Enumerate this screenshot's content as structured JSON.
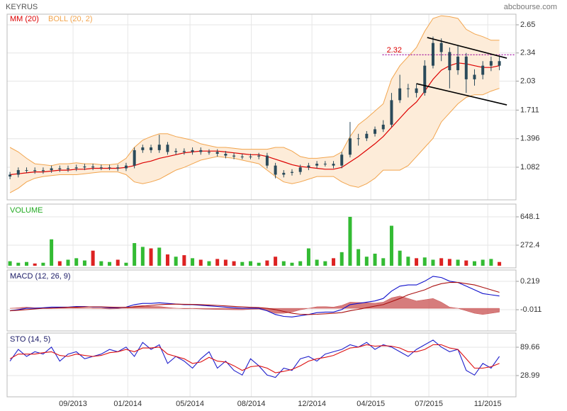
{
  "header": {
    "title": "KEYRUS",
    "source": "abcbourse.com"
  },
  "x_axis": {
    "x": [
      0,
      1,
      2,
      3,
      4,
      5,
      6,
      7,
      8,
      9,
      10,
      11,
      12,
      13,
      14,
      15,
      16,
      17,
      18,
      19,
      20,
      21,
      22,
      23,
      24,
      25,
      26,
      27,
      28,
      29,
      30,
      31,
      32,
      33,
      34,
      35,
      36,
      37,
      38,
      39,
      40,
      41,
      42,
      43,
      44,
      45,
      46,
      47,
      48,
      49,
      50,
      51,
      52,
      53,
      54,
      55,
      56,
      57,
      58,
      59
    ],
    "xlim": [
      -0.35,
      61.0
    ],
    "xticks": [
      {
        "value": 7.6,
        "label": "09/2013"
      },
      {
        "value": 14.2,
        "label": "01/2014"
      },
      {
        "value": 21.7,
        "label": "05/2014"
      },
      {
        "value": 29.1,
        "label": "08/2014"
      },
      {
        "value": 36.4,
        "label": "12/2014"
      },
      {
        "value": 43.5,
        "label": "04/2015"
      },
      {
        "value": 50.5,
        "label": "07/2015"
      },
      {
        "value": 57.6,
        "label": "11/2015"
      }
    ]
  },
  "chart_data": [
    {
      "type": "candlestick",
      "color": "#2a4a5a",
      "open": [
        0.98,
        1.0,
        1.05,
        1.05,
        1.04,
        1.05,
        1.07,
        1.06,
        1.07,
        1.08,
        1.09,
        1.08,
        1.08,
        1.08,
        1.07,
        1.1,
        1.27,
        1.3,
        1.27,
        1.33,
        1.25,
        1.26,
        1.25,
        1.27,
        1.25,
        1.25,
        1.23,
        1.21,
        1.2,
        1.2,
        1.2,
        1.21,
        1.1,
        1.0,
        1.02,
        1.03,
        1.08,
        1.1,
        1.12,
        1.12,
        1.1,
        1.22,
        1.4,
        1.4,
        1.45,
        1.5,
        1.55,
        1.82,
        1.95,
        1.95,
        1.9,
        2.2,
        2.45,
        2.35,
        2.15,
        2.3,
        2.05,
        2.1,
        2.2,
        2.25
      ],
      "high": [
        1.03,
        1.08,
        1.08,
        1.08,
        1.08,
        1.1,
        1.1,
        1.1,
        1.11,
        1.12,
        1.12,
        1.11,
        1.11,
        1.11,
        1.13,
        1.3,
        1.33,
        1.33,
        1.44,
        1.36,
        1.29,
        1.29,
        1.3,
        1.3,
        1.28,
        1.28,
        1.26,
        1.24,
        1.23,
        1.23,
        1.24,
        1.24,
        1.13,
        1.05,
        1.06,
        1.11,
        1.13,
        1.15,
        1.15,
        1.15,
        1.25,
        1.58,
        1.45,
        1.48,
        1.53,
        1.6,
        1.9,
        2.1,
        2.0,
        2.0,
        2.26,
        2.52,
        2.5,
        2.4,
        2.42,
        2.34,
        2.16,
        2.25,
        2.3,
        2.3
      ],
      "low": [
        0.95,
        0.97,
        1.02,
        1.01,
        1.01,
        1.02,
        1.03,
        1.03,
        1.04,
        1.05,
        1.05,
        1.05,
        1.05,
        1.04,
        1.04,
        1.07,
        1.24,
        1.24,
        1.24,
        1.22,
        1.22,
        1.22,
        1.22,
        1.22,
        1.22,
        1.2,
        1.18,
        1.17,
        1.17,
        1.17,
        1.17,
        1.07,
        0.96,
        0.97,
        0.99,
        1.0,
        1.05,
        1.07,
        1.09,
        1.07,
        1.07,
        1.19,
        1.32,
        1.37,
        1.42,
        1.47,
        1.52,
        1.79,
        1.85,
        1.85,
        1.87,
        2.17,
        2.25,
        1.95,
        2.1,
        1.9,
        1.98,
        2.05,
        2.14,
        2.15
      ],
      "close": [
        1.0,
        1.05,
        1.05,
        1.04,
        1.05,
        1.07,
        1.06,
        1.07,
        1.08,
        1.09,
        1.08,
        1.08,
        1.08,
        1.07,
        1.1,
        1.27,
        1.3,
        1.27,
        1.33,
        1.25,
        1.26,
        1.25,
        1.27,
        1.25,
        1.25,
        1.23,
        1.21,
        1.2,
        1.2,
        1.2,
        1.21,
        1.1,
        1.0,
        1.02,
        1.03,
        1.08,
        1.1,
        1.12,
        1.12,
        1.1,
        1.22,
        1.4,
        1.4,
        1.45,
        1.5,
        1.55,
        1.82,
        1.95,
        1.95,
        1.9,
        2.2,
        2.45,
        2.35,
        2.15,
        2.3,
        2.05,
        2.1,
        2.2,
        2.25,
        2.2
      ],
      "series": [
        {
          "name": "MM (20)",
          "color": "#dd0000",
          "values": [
            1.0,
            1.01,
            1.02,
            1.03,
            1.03,
            1.04,
            1.05,
            1.05,
            1.06,
            1.06,
            1.07,
            1.07,
            1.07,
            1.07,
            1.08,
            1.1,
            1.13,
            1.15,
            1.18,
            1.2,
            1.22,
            1.24,
            1.25,
            1.26,
            1.26,
            1.26,
            1.25,
            1.24,
            1.23,
            1.22,
            1.22,
            1.2,
            1.17,
            1.14,
            1.11,
            1.09,
            1.08,
            1.07,
            1.06,
            1.06,
            1.08,
            1.14,
            1.2,
            1.27,
            1.34,
            1.42,
            1.52,
            1.62,
            1.72,
            1.8,
            1.92,
            2.05,
            2.15,
            2.2,
            2.23,
            2.22,
            2.2,
            2.18,
            2.18,
            2.2
          ]
        },
        {
          "name": "BOLL (20, 2)",
          "color": "#f2a54e",
          "fill": "#fdecd9",
          "upper": [
            1.3,
            1.25,
            1.18,
            1.12,
            1.11,
            1.1,
            1.12,
            1.12,
            1.13,
            1.12,
            1.12,
            1.11,
            1.11,
            1.12,
            1.18,
            1.3,
            1.38,
            1.42,
            1.45,
            1.45,
            1.42,
            1.4,
            1.38,
            1.34,
            1.32,
            1.3,
            1.3,
            1.29,
            1.28,
            1.28,
            1.28,
            1.28,
            1.3,
            1.3,
            1.26,
            1.2,
            1.18,
            1.18,
            1.19,
            1.2,
            1.25,
            1.42,
            1.55,
            1.62,
            1.7,
            1.78,
            2.05,
            2.2,
            2.3,
            2.4,
            2.58,
            2.72,
            2.75,
            2.74,
            2.72,
            2.6,
            2.55,
            2.52,
            2.48,
            2.48
          ],
          "lower": [
            0.8,
            0.85,
            0.92,
            0.96,
            0.98,
            0.99,
            1.0,
            1.0,
            1.0,
            1.01,
            1.02,
            1.03,
            1.03,
            1.03,
            1.0,
            0.92,
            0.9,
            0.92,
            0.95,
            1.0,
            1.05,
            1.08,
            1.12,
            1.16,
            1.18,
            1.2,
            1.19,
            1.18,
            1.16,
            1.14,
            1.12,
            1.05,
            0.98,
            0.92,
            0.9,
            0.92,
            0.95,
            0.98,
            0.98,
            0.98,
            0.92,
            0.88,
            0.86,
            0.9,
            0.96,
            1.05,
            1.05,
            1.05,
            1.1,
            1.2,
            1.3,
            1.4,
            1.58,
            1.68,
            1.78,
            1.85,
            1.88,
            1.88,
            1.92,
            1.95
          ]
        }
      ],
      "trendline_color": "#000000",
      "trendlines": [
        {
          "x": [
            50.3,
            59.9
          ],
          "values": [
            2.51,
            2.283
          ]
        },
        {
          "x": [
            49.0,
            59.9
          ],
          "values": [
            2.002,
            1.768
          ]
        }
      ],
      "reference_line": {
        "value": 2.32,
        "x_start": 44.9,
        "color": "#990099",
        "label_color": "#dd0000"
      },
      "ylim": [
        0.723,
        2.767
      ],
      "yticks": [
        1.082,
        1.396,
        1.711,
        2.03,
        2.34,
        2.65
      ]
    },
    {
      "type": "bar",
      "title": "VOLUME",
      "title_color": "#22aa22",
      "up_color": "#33bb33",
      "down_color": "#dd2222",
      "values": [
        60,
        40,
        50,
        30,
        40,
        350,
        60,
        80,
        100,
        70,
        200,
        60,
        50,
        80,
        40,
        300,
        250,
        230,
        240,
        150,
        120,
        140,
        100,
        80,
        60,
        90,
        80,
        60,
        50,
        60,
        40,
        70,
        120,
        60,
        40,
        60,
        230,
        80,
        60,
        100,
        180,
        648,
        220,
        120,
        160,
        100,
        530,
        200,
        120,
        100,
        110,
        80,
        100,
        90,
        80,
        70,
        60,
        80,
        90,
        50
      ],
      "ylim": [
        -28,
        817
      ],
      "yticks": [
        272.4,
        648.1
      ]
    },
    {
      "type": "line",
      "title": "MACD (12, 26, 9)",
      "title_color": "#1a1a66",
      "series": [
        {
          "color": "#1010cc",
          "values": [
            -0.02,
            -0.01,
            0.0,
            0.0,
            0.005,
            0.01,
            0.01,
            0.01,
            0.015,
            0.015,
            0.01,
            0.01,
            0.005,
            0.005,
            0.01,
            0.03,
            0.04,
            0.04,
            0.045,
            0.04,
            0.035,
            0.03,
            0.03,
            0.025,
            0.02,
            0.015,
            0.01,
            0.005,
            0.0,
            0.0,
            0.0,
            -0.02,
            -0.05,
            -0.065,
            -0.07,
            -0.06,
            -0.05,
            -0.035,
            -0.03,
            -0.03,
            -0.01,
            0.03,
            0.04,
            0.05,
            0.06,
            0.08,
            0.14,
            0.18,
            0.19,
            0.19,
            0.22,
            0.26,
            0.25,
            0.22,
            0.21,
            0.18,
            0.15,
            0.12,
            0.11,
            0.1
          ]
        },
        {
          "color": "#aa1010",
          "values": [
            -0.02,
            -0.015,
            -0.01,
            -0.005,
            0.0,
            0.0,
            0.005,
            0.008,
            0.01,
            0.012,
            0.012,
            0.012,
            0.01,
            0.008,
            0.008,
            0.012,
            0.018,
            0.024,
            0.03,
            0.033,
            0.034,
            0.033,
            0.032,
            0.03,
            0.027,
            0.024,
            0.02,
            0.016,
            0.012,
            0.008,
            0.006,
            0.0,
            -0.01,
            -0.025,
            -0.04,
            -0.048,
            -0.05,
            -0.048,
            -0.044,
            -0.04,
            -0.034,
            -0.02,
            -0.008,
            0.005,
            0.018,
            0.03,
            0.055,
            0.08,
            0.11,
            0.13,
            0.15,
            0.18,
            0.2,
            0.21,
            0.21,
            0.2,
            0.19,
            0.17,
            0.15,
            0.13
          ]
        }
      ],
      "histogram": {
        "color": "#c85050",
        "values": [
          0,
          0.005,
          0.01,
          0.005,
          0.005,
          0.01,
          0.005,
          0.002,
          0.005,
          0.003,
          -0.002,
          -0.002,
          -0.005,
          -0.003,
          0.002,
          0.018,
          0.022,
          0.016,
          0.015,
          0.007,
          0.001,
          -0.003,
          -0.002,
          -0.005,
          -0.007,
          -0.009,
          -0.01,
          -0.011,
          -0.012,
          -0.008,
          -0.006,
          -0.02,
          -0.04,
          -0.04,
          -0.03,
          -0.012,
          0.0,
          0.013,
          0.014,
          0.01,
          0.024,
          0.05,
          0.048,
          0.045,
          0.042,
          0.05,
          0.085,
          0.1,
          0.08,
          0.06,
          0.07,
          0.08,
          0.05,
          0.01,
          0.0,
          -0.02,
          -0.04,
          -0.05,
          -0.04,
          -0.03
        ]
      },
      "ylim": [
        -0.183,
        0.311
      ],
      "yticks": [
        -0.011,
        0.219
      ]
    },
    {
      "type": "line",
      "title": "STO (14, 5)",
      "title_color": "#1a1a66",
      "series": [
        {
          "color": "#2020cc",
          "values": [
            60,
            85,
            70,
            80,
            75,
            90,
            60,
            75,
            80,
            65,
            70,
            75,
            85,
            80,
            90,
            70,
            100,
            85,
            95,
            55,
            70,
            60,
            45,
            65,
            80,
            45,
            60,
            40,
            30,
            65,
            50,
            30,
            25,
            45,
            40,
            65,
            70,
            60,
            75,
            80,
            85,
            95,
            90,
            100,
            85,
            95,
            90,
            80,
            70,
            85,
            95,
            105,
            90,
            80,
            85,
            40,
            30,
            55,
            45,
            70
          ]
        },
        {
          "color": "#dd1010",
          "values": [
            65,
            75,
            75,
            75,
            78,
            80,
            72,
            70,
            75,
            72,
            70,
            72,
            78,
            80,
            85,
            80,
            88,
            88,
            90,
            75,
            70,
            65,
            55,
            58,
            68,
            60,
            58,
            50,
            40,
            48,
            50,
            45,
            35,
            38,
            42,
            50,
            60,
            65,
            68,
            72,
            80,
            88,
            90,
            95,
            92,
            93,
            92,
            88,
            80,
            80,
            85,
            95,
            95,
            88,
            85,
            65,
            45,
            45,
            48,
            55
          ]
        }
      ],
      "ylim": [
        -16.5,
        120
      ],
      "yticks": [
        28.99,
        89.66
      ]
    }
  ]
}
